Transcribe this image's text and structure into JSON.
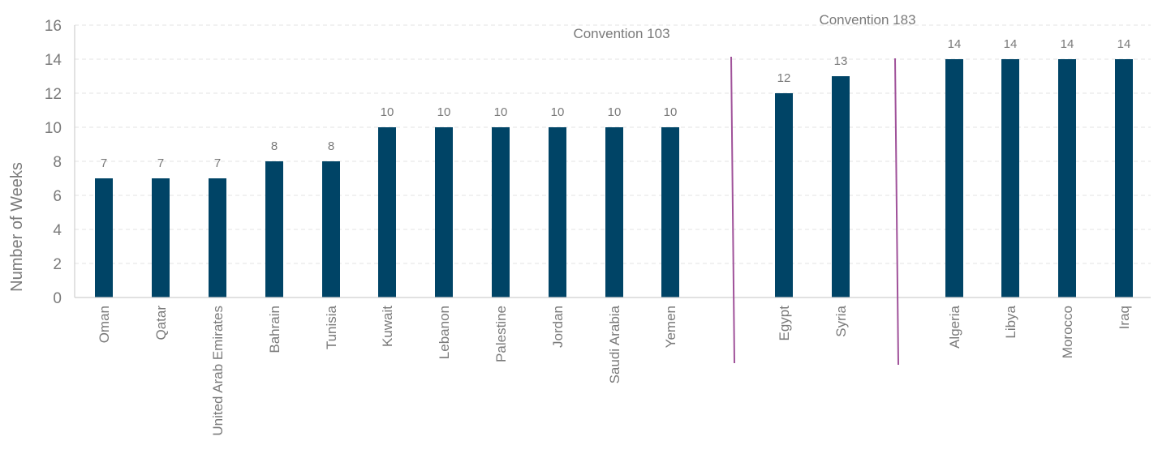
{
  "chart_data": {
    "type": "bar",
    "title": "",
    "xlabel": "",
    "ylabel": "Number of Weeks",
    "ylim": [
      0,
      16
    ],
    "yticks": [
      0,
      2,
      4,
      6,
      8,
      10,
      12,
      14,
      16
    ],
    "grid": true,
    "legend": "none",
    "categories": [
      "Oman",
      "Qatar",
      "United Arab Emirates",
      "Bahrain",
      "Tunisia",
      "Kuwait",
      "Lebanon",
      "Palestine",
      "Jordan",
      "Saudi Arabia",
      "Yemen",
      "Egypt",
      "Syria",
      "Algeria",
      "Libya",
      "Morocco",
      "Iraq"
    ],
    "values": [
      7,
      7,
      7,
      8,
      8,
      10,
      10,
      10,
      10,
      10,
      10,
      12,
      13,
      14,
      14,
      14,
      14
    ],
    "data_labels": [
      "7",
      "7",
      "7",
      "8",
      "8",
      "10",
      "10",
      "10",
      "10",
      "10",
      "10",
      "12",
      "13",
      "14",
      "14",
      "14",
      "14"
    ],
    "annotations": [
      "Convention 103",
      "Convention 183"
    ],
    "colors": {
      "bar": "#004466",
      "divider": "#a0529a",
      "text": "#7a7a7a",
      "grid": "#e3e3e3",
      "axis": "#cfcfcf"
    }
  }
}
